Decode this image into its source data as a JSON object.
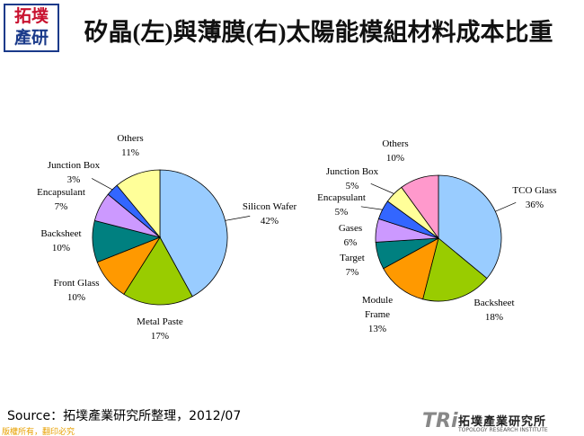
{
  "logo": {
    "line1": "拓墣",
    "line2": "產研"
  },
  "title": "矽晶(左)與薄膜(右)太陽能模組材料成本比重",
  "source": "Source：拓墣產業研究所整理，2012/07",
  "footer": "版權所有，翻印必究",
  "brand": {
    "mark": "TRi",
    "name": "拓墣產業研究所",
    "english": "TOPOLOGY RESEARCH INSTITUTE"
  },
  "chart_data": [
    {
      "type": "pie",
      "categories": [
        "Silicon Wafer",
        "Metal Paste",
        "Front Glass",
        "Backsheet",
        "Encapsulant",
        "Junction Box",
        "Others"
      ],
      "values": [
        42,
        17,
        10,
        10,
        7,
        3,
        11
      ],
      "value_labels": [
        "42%",
        "17%",
        "10%",
        "10%",
        "7%",
        "3%",
        "11%"
      ],
      "colors": [
        "#99ccff",
        "#99cc00",
        "#ff9900",
        "#008080",
        "#cc99ff",
        "#3366ff",
        "#ffff99"
      ]
    },
    {
      "type": "pie",
      "categories": [
        "TCO Glass",
        "Backsheet",
        "Module Frame",
        "Target",
        "Gases",
        "Encapsulant",
        "Junction Box",
        "Others"
      ],
      "values": [
        36,
        18,
        13,
        7,
        6,
        5,
        5,
        10
      ],
      "value_labels": [
        "36%",
        "18%",
        "13%",
        "7%",
        "6%",
        "5%",
        "5%",
        "10%"
      ],
      "colors": [
        "#99ccff",
        "#99cc00",
        "#ff9900",
        "#008080",
        "#cc99ff",
        "#3366ff",
        "#ffff99",
        "#ff99cc"
      ]
    }
  ]
}
